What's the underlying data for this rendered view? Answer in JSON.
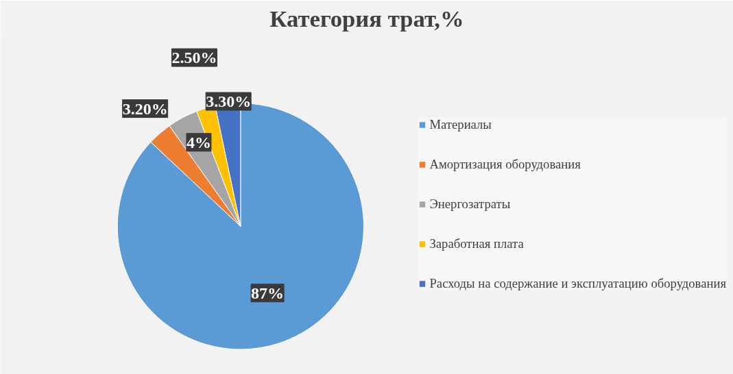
{
  "chart_data": {
    "type": "pie",
    "title": "Категория трат,%",
    "categories": [
      "Материалы",
      "Амортизация оборудования",
      "Энергозатраты",
      "Заработная плата",
      "Расходы на содержание и эксплуатацию оборудования"
    ],
    "values": [
      87,
      3.2,
      4,
      2.5,
      3.3
    ],
    "value_labels": [
      "87%",
      "3.20%",
      "4%",
      "2.50%",
      "3.30%"
    ],
    "colors": [
      "#5b9bd5",
      "#ed7d31",
      "#a5a5a5",
      "#ffc000",
      "#4472c4"
    ],
    "legend": "right"
  }
}
